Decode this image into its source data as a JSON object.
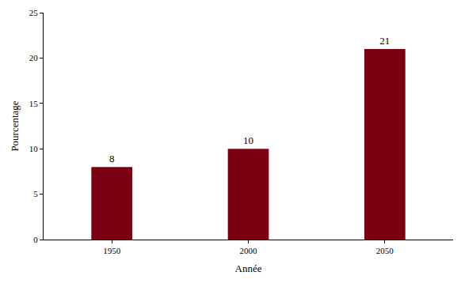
{
  "chart_data": {
    "type": "bar",
    "x_label": "Année",
    "y_label": "Pourcentage",
    "categories": [
      "1950",
      "2000",
      "2050"
    ],
    "values": [
      8,
      10,
      21
    ],
    "color": "#7b0012",
    "ylim": [
      0,
      25
    ],
    "yticks": [
      0,
      5,
      10,
      15,
      20,
      25
    ],
    "grid": false,
    "data_labels": true
  }
}
